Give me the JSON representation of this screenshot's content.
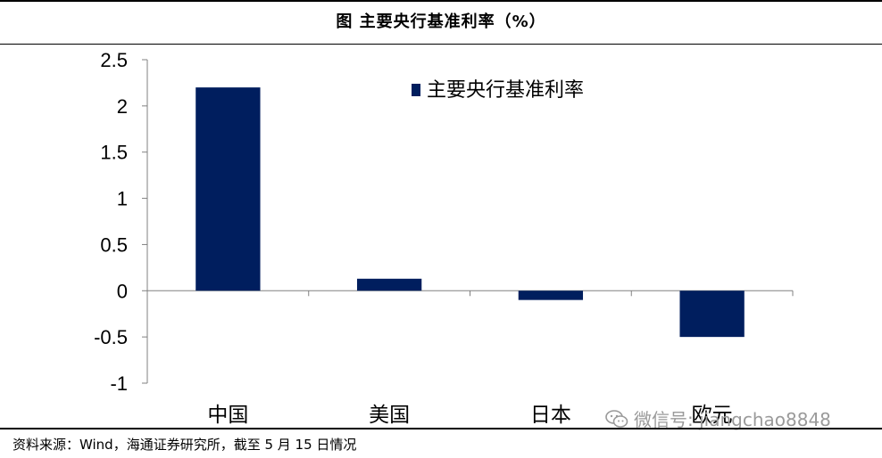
{
  "header": {
    "title": "图  主要央行基准利率（%）"
  },
  "footer": {
    "source": "资料来源：Wind，海通证券研究所，截至 5 月 15 日情况"
  },
  "watermark": {
    "text": "微信号: jiangchao8848",
    "icon": "wechat-icon",
    "color": "#9a9a9a"
  },
  "chart_data": {
    "type": "bar",
    "categories": [
      "中国",
      "美国",
      "日本",
      "欧元"
    ],
    "series": [
      {
        "name": "主要央行基准利率",
        "values": [
          2.2,
          0.13,
          -0.1,
          -0.5
        ],
        "color": "#001E5E"
      }
    ],
    "ylim": [
      -1,
      2.5
    ],
    "yticks": [
      2.5,
      2,
      1.5,
      1,
      0.5,
      0,
      -0.5,
      -1
    ],
    "ytick_labels": [
      "2.5",
      "2",
      "1.5",
      "1",
      "0.5",
      "0",
      "-0.5",
      "-1"
    ],
    "grid": false,
    "legend_position": "top-right"
  }
}
